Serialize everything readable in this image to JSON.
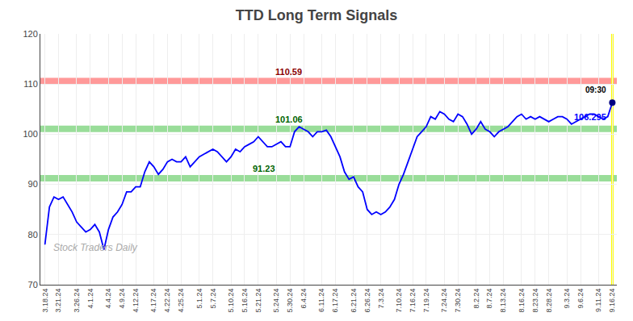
{
  "chart_data": {
    "type": "line",
    "title": "TTD Long Term Signals",
    "categories": [
      "3.18.24",
      null,
      null,
      "3.21.24",
      null,
      null,
      null,
      "3.26.24",
      null,
      null,
      "4.1.24",
      null,
      null,
      null,
      "4.4.24",
      null,
      null,
      "4.9.24",
      null,
      null,
      "4.12.24",
      null,
      null,
      null,
      "4.17.24",
      null,
      null,
      "4.22.24",
      null,
      null,
      "4.25.24",
      null,
      null,
      null,
      "5.1.24",
      null,
      null,
      "5.7.24",
      null,
      null,
      null,
      "5.10.24",
      null,
      null,
      "5.16.24",
      null,
      null,
      "5.21.24",
      null,
      null,
      null,
      "5.24.24",
      null,
      null,
      "5.30.24",
      null,
      null,
      "6.4.24",
      null,
      null,
      null,
      "6.11.24",
      null,
      null,
      "6.17.24",
      null,
      null,
      null,
      "6.21.24",
      null,
      null,
      "6.26.24",
      null,
      null,
      "7.3.24",
      null,
      null,
      null,
      "7.10.24",
      null,
      null,
      "7.16.24",
      null,
      null,
      "7.19.24",
      null,
      null,
      null,
      "7.24.24",
      null,
      null,
      "7.30.24",
      null,
      null,
      null,
      "8.2.24",
      null,
      null,
      "8.7.24",
      null,
      null,
      "8.13.24",
      null,
      null,
      null,
      "8.16.24",
      null,
      null,
      "8.23.24",
      null,
      null,
      "8.28.24",
      null,
      null,
      null,
      "9.3.24",
      null,
      null,
      "9.6.24",
      null,
      null,
      null,
      "9.11.24",
      null,
      null,
      "9.16.24"
    ],
    "values": [
      78.0,
      85.5,
      87.5,
      87.0,
      87.5,
      86.0,
      84.5,
      82.5,
      81.5,
      80.5,
      81.0,
      82.0,
      80.5,
      77.0,
      81.0,
      83.5,
      84.5,
      86.0,
      88.5,
      88.5,
      89.5,
      89.5,
      92.5,
      94.5,
      93.5,
      92.0,
      93.0,
      94.5,
      95.0,
      94.5,
      94.5,
      95.5,
      93.5,
      94.5,
      95.5,
      96.0,
      96.5,
      97.0,
      96.5,
      95.5,
      94.5,
      95.5,
      97.0,
      96.5,
      97.5,
      98.0,
      98.5,
      99.5,
      98.5,
      97.5,
      97.5,
      98.0,
      98.5,
      97.5,
      97.5,
      100.5,
      101.5,
      101.0,
      100.5,
      99.5,
      100.5,
      100.5,
      100.8,
      99.5,
      97.5,
      95.5,
      92.5,
      91.0,
      91.5,
      89.5,
      88.5,
      85.0,
      84.0,
      84.5,
      84.0,
      84.5,
      85.5,
      87.0,
      90.0,
      92.0,
      94.5,
      97.0,
      99.5,
      100.5,
      101.5,
      103.5,
      103.0,
      104.5,
      104.0,
      103.0,
      102.5,
      104.0,
      103.5,
      102.0,
      100.0,
      101.0,
      102.5,
      101.0,
      100.5,
      99.5,
      100.5,
      101.0,
      101.5,
      102.5,
      103.5,
      104.0,
      103.0,
      103.5,
      103.0,
      103.5,
      103.0,
      102.5,
      103.0,
      103.5,
      103.5,
      103.0,
      102.0,
      102.5,
      103.0,
      103.5,
      104.0,
      104.0,
      103.5,
      103.0,
      103.5,
      106.295
    ],
    "color": "blue",
    "ylim": [
      70,
      120
    ],
    "yticks": [
      70,
      80,
      90,
      100,
      110,
      120
    ],
    "grid": true,
    "hlines": [
      {
        "value": 110.59,
        "label": "110.59",
        "color": "#ff9999",
        "label_color": "darkred"
      },
      {
        "value": 101.06,
        "label": "101.06",
        "color": "#99dd99",
        "label_color": "darkgreen"
      },
      {
        "value": 91.23,
        "label": "91.23",
        "color": "#99dd99",
        "label_color": "darkgreen"
      }
    ],
    "vline": {
      "label": "09:30",
      "color": "yellow",
      "label_color": "black"
    },
    "last_point": {
      "value": 106.295,
      "label": "106.295",
      "color": "navy",
      "label_color": "blue"
    },
    "watermark": "Stock Traders Daily",
    "watermark_color": "#aaaaaa"
  }
}
